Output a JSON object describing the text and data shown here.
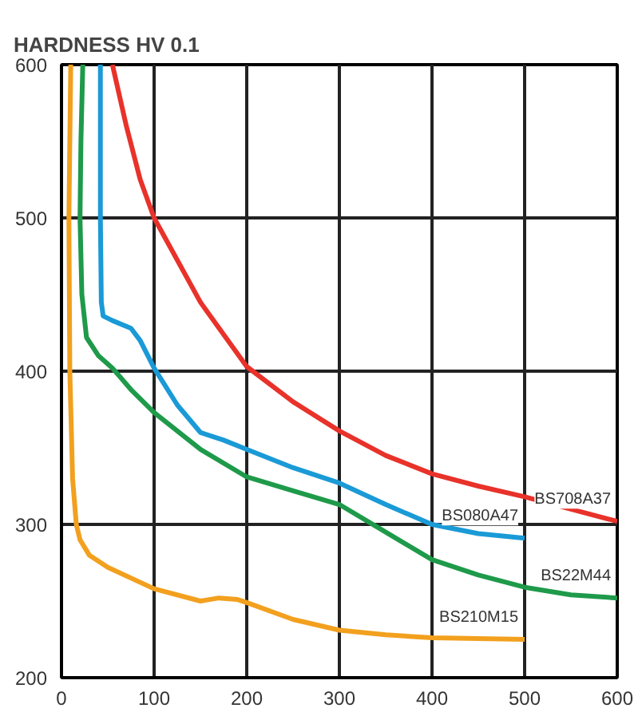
{
  "chart_data": {
    "type": "line",
    "title": "HARDNESS HV 0.1",
    "xlim": [
      0,
      600
    ],
    "xticks": [
      0,
      100,
      200,
      300,
      400,
      500,
      600
    ],
    "ylim": [
      200,
      600
    ],
    "yticks": [
      200,
      300,
      400,
      500,
      600
    ],
    "grid": true,
    "marker": "none",
    "line_style": "solid",
    "series": [
      {
        "name": "BS708A37",
        "color": "#e8322a",
        "x": [
          55,
          70,
          85,
          100,
          150,
          200,
          250,
          300,
          350,
          400,
          450,
          500,
          550,
          600
        ],
        "values": [
          600,
          560,
          525,
          500,
          445,
          403,
          380,
          361,
          345,
          333,
          325,
          318,
          310,
          302
        ]
      },
      {
        "name": "BS080A47",
        "color": "#1a9ad6",
        "x": [
          42,
          42,
          43,
          45,
          55,
          75,
          85,
          100,
          125,
          150,
          175,
          200,
          250,
          300,
          350,
          400,
          450,
          500
        ],
        "values": [
          600,
          500,
          445,
          436,
          433,
          428,
          420,
          402,
          378,
          360,
          355,
          349,
          337,
          327,
          313,
          300,
          294,
          291
        ]
      },
      {
        "name": "BS22M44",
        "color": "#1e9a4a",
        "x": [
          23,
          21,
          20,
          22,
          27,
          40,
          55,
          75,
          100,
          150,
          200,
          250,
          300,
          350,
          400,
          450,
          500,
          550,
          600
        ],
        "values": [
          600,
          550,
          500,
          450,
          422,
          410,
          402,
          388,
          373,
          349,
          331,
          322,
          313,
          295,
          277,
          267,
          259,
          254,
          252
        ]
      },
      {
        "name": "BS210M15",
        "color": "#f2a01e",
        "x": [
          10,
          8,
          9,
          12,
          16,
          20,
          30,
          50,
          100,
          150,
          170,
          190,
          200,
          250,
          300,
          350,
          400,
          500
        ],
        "values": [
          600,
          500,
          400,
          330,
          300,
          290,
          280,
          272,
          258,
          250,
          252,
          251,
          249,
          238,
          231,
          228,
          226,
          225
        ]
      }
    ]
  }
}
